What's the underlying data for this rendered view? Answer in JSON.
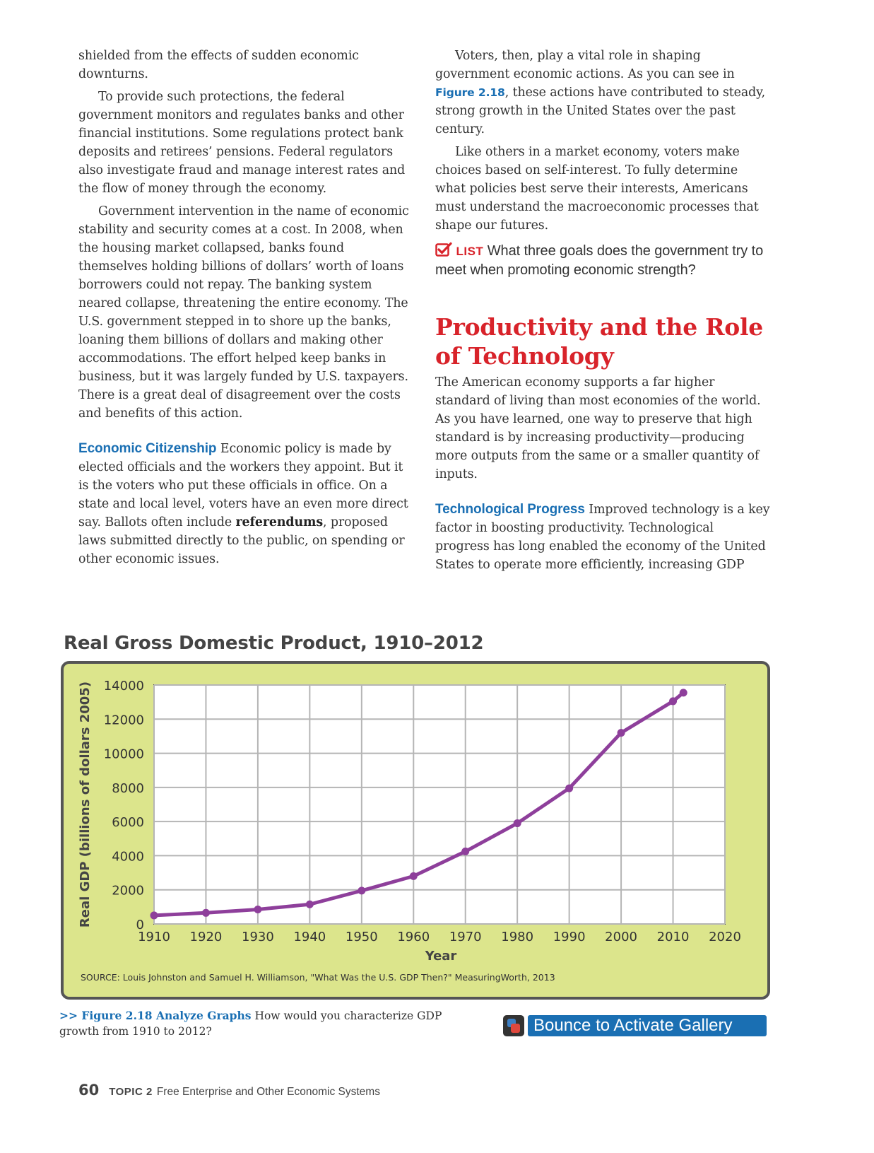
{
  "left_column": {
    "p1": "shielded from the effects of sudden economic downturns.",
    "p2": "To provide such protections, the federal government monitors and regulates banks and other financial institutions. Some regulations protect bank deposits and retirees’ pensions. Federal regulators also investigate fraud and manage interest rates and the flow of money through the economy.",
    "p3": "Government intervention in the name of economic stability and security comes at a cost. In 2008, when the housing market collapsed, banks found themselves holding billions of dollars’ worth of loans borrowers could not repay. The banking system neared collapse, threatening the entire economy. The U.S. government stepped in to shore up the banks, loaning them billions of dollars and making other accommodations. The effort helped keep banks in business, but it was largely funded by U.S. taxpayers. There is a great deal of disagreement over the costs and benefits of this action.",
    "p4_heading": "Economic Citizenship",
    "p4_a": " Economic policy is made by elected officials and the workers they appoint. But it is the voters who put these officials in office. On a state and local level, voters have an even more direct say. Ballots often include ",
    "p4_term": "referendums",
    "p4_b": ", proposed laws submitted directly to the public, on spending or other economic issues."
  },
  "right_column": {
    "p1_a": "Voters, then, play a vital role in shaping government economic actions. As you can see in ",
    "p1_ref": "Figure 2.18",
    "p1_b": ", these actions have contributed to steady, strong growth in the United States over the past century.",
    "p2": "Like others in a market economy, voters make choices based on self-interest. To fully determine what policies best serve their interests, Americans must understand the macroeconomic processes that shape our futures.",
    "list_tag": "LIST",
    "list_question": " What three goals does the government try to meet when promoting economic strength?",
    "section_heading": "Productivity and the Role of Technology",
    "p3": "The American economy supports a far higher standard of living than most economies of the world. As you have learned, one way to preserve that high standard is by increasing productivity—producing more outputs from the same or a smaller quantity of inputs.",
    "p4_heading": "Technological Progress",
    "p4": " Improved technology is a key factor in boosting productivity. Technological progress has long enabled the economy of the United States to operate more efficiently, increasing GDP"
  },
  "chart_data": {
    "type": "line",
    "title": "Real Gross Domestic Product, 1910–2012",
    "xlabel": "Year",
    "ylabel": "Real GDP (billions of dollars 2005)",
    "x_ticks": [
      "1910",
      "1920",
      "1930",
      "1940",
      "1950",
      "1960",
      "1970",
      "1980",
      "1990",
      "2000",
      "2010",
      "2020"
    ],
    "y_ticks": [
      "0",
      "2000",
      "4000",
      "6000",
      "8000",
      "10000",
      "12000",
      "14000"
    ],
    "xlim": [
      1910,
      2020
    ],
    "ylim": [
      0,
      14000
    ],
    "grid": true,
    "series": [
      {
        "x": [
          1910,
          1920,
          1930,
          1940,
          1950,
          1960,
          1970,
          1980,
          1990,
          2000,
          2010,
          2012
        ],
        "values": [
          500,
          650,
          850,
          1150,
          1950,
          2800,
          4250,
          5900,
          7950,
          11200,
          13050,
          13550
        ]
      }
    ],
    "source": "SOURCE: Louis Johnston and Samuel H. Williamson, \"What Was the U.S. GDP Then?\" MeasuringWorth, 2013",
    "colors": {
      "line": "#8e3f9b",
      "panel": "#dce58c",
      "frame": "#555555"
    }
  },
  "caption": {
    "lead": ">> Figure 2.18 Analyze Graphs",
    "text": "  How would you characterize GDP growth from 1910 to 2012?"
  },
  "gallery_button": {
    "label": "Bounce to Activate Gallery"
  },
  "footer": {
    "page_number": "60",
    "topic": "TOPIC 2",
    "title": "Free Enterprise and Other Economic Systems"
  }
}
